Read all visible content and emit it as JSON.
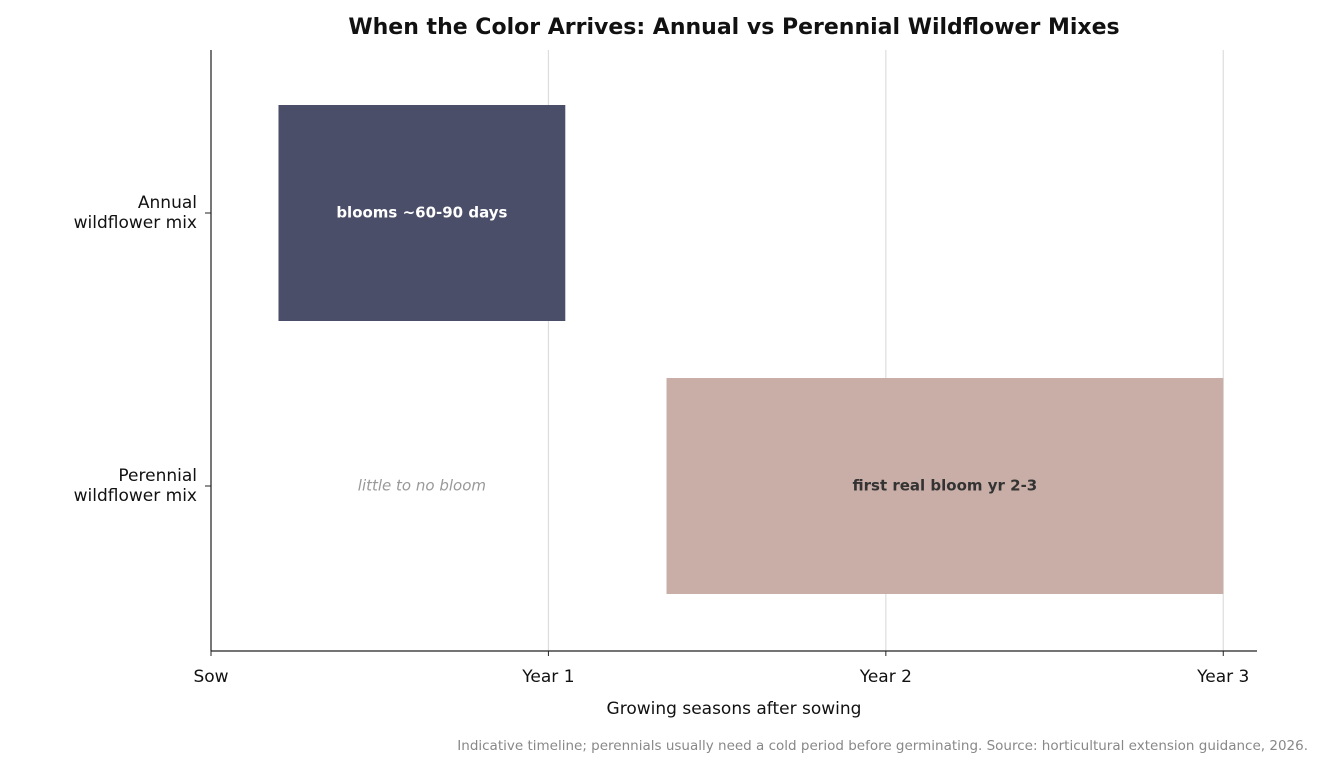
{
  "chart_data": {
    "type": "bar",
    "orientation": "horizontal",
    "title": "When the Color Arrives: Annual vs Perennial Wildflower Mixes",
    "categories": [
      "Annual\nwildflower mix",
      "Perennial\nwildflower mix"
    ],
    "start": [
      0.2,
      1.35
    ],
    "end": [
      1.05,
      3
    ],
    "colors": [
      "#4a4e69",
      "#c9ada7"
    ],
    "bar_labels": [
      "blooms ~60-90 days",
      "first real bloom yr 2-3"
    ],
    "bar_label_colors": [
      "#ffffff",
      "#333333"
    ],
    "annotation": "little to no bloom",
    "xlabel": "Growing seasons after sowing",
    "xlim": [
      0,
      3.1
    ],
    "xticks": [
      {
        "value": 0,
        "label": "Sow"
      },
      {
        "value": 1,
        "label": "Year 1"
      },
      {
        "value": 2,
        "label": "Year 2"
      },
      {
        "value": 3,
        "label": "Year 3"
      }
    ],
    "grid": true,
    "note": "Indicative timeline; perennials usually need a cold period before germinating. Source: horticultural extension guidance, 2026."
  }
}
